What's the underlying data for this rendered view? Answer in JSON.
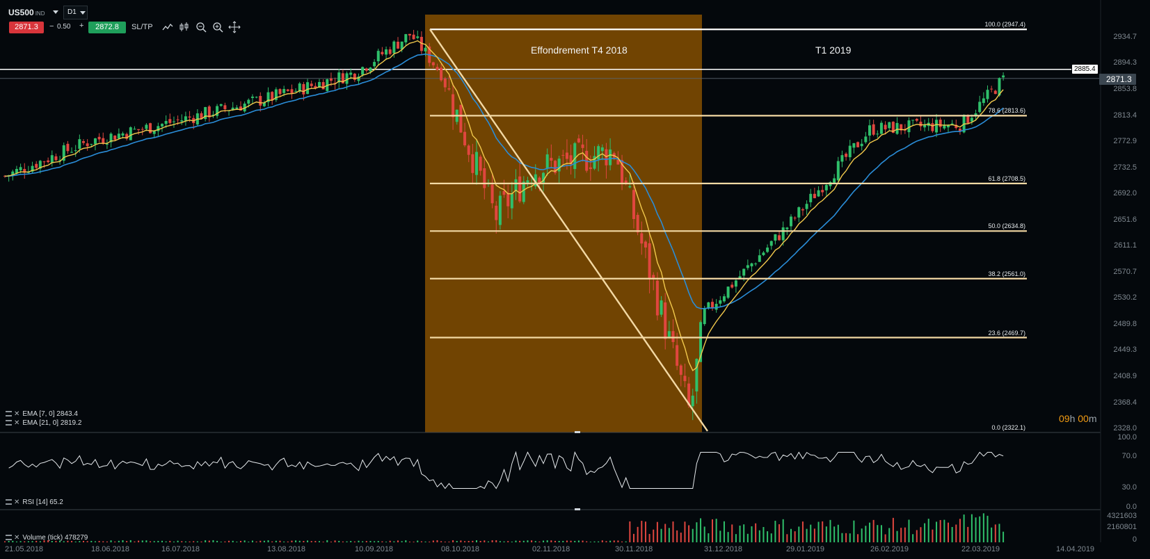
{
  "toolbar": {
    "symbol": "US500",
    "symbol_type": "IND",
    "timeframe": "D1",
    "bid": "2871.3",
    "spread_minus": "−",
    "spread": "0.50",
    "spread_plus": "+",
    "ask": "2872.8",
    "sltp_label": "SL/TP",
    "tool_icons": [
      "line-chart-icon",
      "candles-icon",
      "zoom-out-icon",
      "zoom-in-icon",
      "crosshair-icon"
    ]
  },
  "chart": {
    "annotation_crash": "Effondrement T4 2018",
    "annotation_q1": "T1 2019",
    "hline_price": "2885.4",
    "last_price": "2871.3",
    "countdown_num1": "09",
    "countdown_unit1": "h",
    "countdown_num2": "00",
    "countdown_unit2": "m",
    "colors": {
      "bull": "#2fbf6a",
      "bear": "#e0463f",
      "ema7": "#f2c94c",
      "ema21": "#2a8dd8",
      "shade": "#8a5200",
      "fib": "#f3d9a4",
      "countdown": "#f39c12"
    }
  },
  "price_axis": [
    "2934.7",
    "2894.3",
    "2853.8",
    "2813.4",
    "2772.9",
    "2732.5",
    "2692.0",
    "2651.6",
    "2611.1",
    "2570.7",
    "2530.2",
    "2489.8",
    "2449.3",
    "2408.9",
    "2368.4",
    "2328.0"
  ],
  "fib_levels": [
    {
      "label": "100.0 (2947.4)",
      "price": 2947.4
    },
    {
      "label": "78.6 (2813.6)",
      "price": 2813.6
    },
    {
      "label": "61.8 (2708.5)",
      "price": 2708.5
    },
    {
      "label": "50.0 (2634.8)",
      "price": 2634.8
    },
    {
      "label": "38.2 (2561.0)",
      "price": 2561.0
    },
    {
      "label": "23.6 (2469.7)",
      "price": 2469.7
    },
    {
      "label": "0.0 (2322.1)",
      "price": 2322.1
    }
  ],
  "indicators": {
    "ema7": "EMA [7, 0] 2843.4",
    "ema21": "EMA [21, 0] 2819.2",
    "rsi": "RSI [14] 65.2",
    "volume": "Volume (tick) 478279"
  },
  "rsi_axis": [
    "100.0",
    "70.0",
    "30.0",
    "0.0"
  ],
  "volume_axis": [
    "4321603",
    "2160801",
    "0"
  ],
  "date_axis": [
    "21.05.2018",
    "18.06.2018",
    "16.07.2018",
    "13.08.2018",
    "10.09.2018",
    "08.10.2018",
    "02.11.2018",
    "30.11.2018",
    "31.12.2018",
    "29.01.2019",
    "26.02.2019",
    "22.03.2019",
    "14.04.2019"
  ],
  "chart_data": {
    "type": "candlestick",
    "symbol": "US500",
    "timeframe": "D1",
    "anchors": [
      {
        "date": "21.05.2018",
        "close": 2720
      },
      {
        "date": "18.06.2018",
        "close": 2775
      },
      {
        "date": "16.07.2018",
        "close": 2800
      },
      {
        "date": "13.08.2018",
        "close": 2840
      },
      {
        "date": "10.09.2018",
        "close": 2880
      },
      {
        "date": "20.09.2018",
        "close": 2940
      },
      {
        "date": "08.10.2018",
        "close": 2880
      },
      {
        "date": "24.10.2018",
        "close": 2656
      },
      {
        "date": "02.11.2018",
        "close": 2730
      },
      {
        "date": "30.11.2018",
        "close": 2760
      },
      {
        "date": "24.12.2018",
        "close": 2351
      },
      {
        "date": "31.12.2018",
        "close": 2507
      },
      {
        "date": "29.01.2019",
        "close": 2640
      },
      {
        "date": "26.02.2019",
        "close": 2793
      },
      {
        "date": "22.03.2019",
        "close": 2800
      },
      {
        "date": "27.03.2019",
        "close": 2871
      }
    ],
    "ylim": [
      2328.0,
      2950.0
    ],
    "rsi_last": 65.2,
    "rsi_ylim": [
      0,
      100
    ],
    "volume_last": 478279,
    "volume_ylim": [
      0,
      4321603
    ]
  }
}
